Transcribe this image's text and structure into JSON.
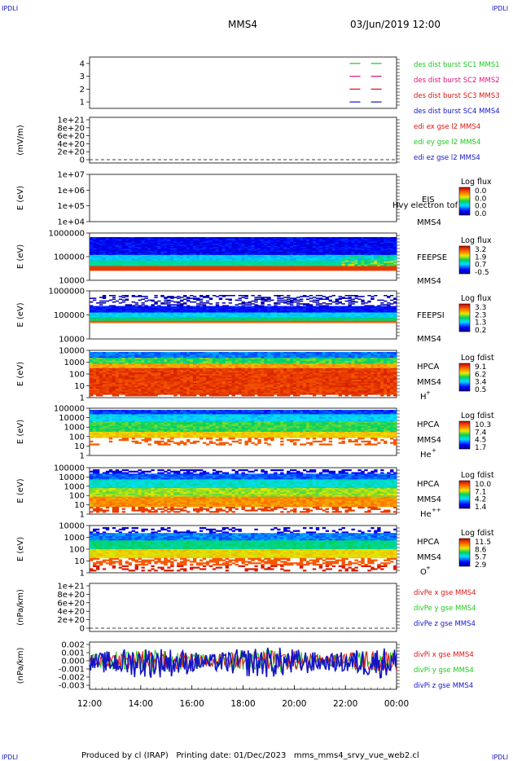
{
  "header": {
    "logo_left": "IPDLI",
    "logo_right": "IPDLI",
    "spacecraft": "MMS4",
    "datetime": "03/Jun/2019 12:00"
  },
  "footer": {
    "logo_left": "IPDLI",
    "logo_right": "IPDLI",
    "credit": "Produced by cl (IRAP)   Printing date: 01/Dec/2023   mms_mms4_srvy_vue_web2.cl"
  },
  "colors": {
    "sc1": "#1ec81e",
    "sc2": "#e0147a",
    "sc3": "#d91515",
    "sc4": "#1414c8",
    "x": "#d91515",
    "y": "#1ec81e",
    "z": "#1414c8"
  },
  "chart_data": [
    {
      "type": "line",
      "id": "burst",
      "ylim": [
        0.5,
        4.5
      ],
      "ticks": [
        "1",
        "2",
        "3",
        "4"
      ],
      "xlim": [
        "12:00",
        "00:00"
      ],
      "series": [
        {
          "name": "des dist burst SC1 MMS1",
          "y": 4,
          "segments": [
            [
              "22:10",
              "22:35"
            ],
            [
              "23:00",
              "23:25"
            ]
          ]
        },
        {
          "name": "des dist burst SC2 MMS2",
          "y": 3,
          "segments": [
            [
              "22:10",
              "22:35"
            ],
            [
              "23:00",
              "23:25"
            ]
          ]
        },
        {
          "name": "des dist burst SC3 MMS3",
          "y": 2,
          "segments": [
            [
              "22:10",
              "22:35"
            ],
            [
              "23:00",
              "23:25"
            ]
          ]
        },
        {
          "name": "des dist burst SC4 MMS4",
          "y": 1,
          "segments": [
            [
              "22:10",
              "22:35"
            ],
            [
              "23:00",
              "23:25"
            ]
          ]
        }
      ]
    },
    {
      "type": "line",
      "id": "edi",
      "ylabel": "(mV/m)",
      "ticks": [
        "0",
        "2e+20",
        "4e+20",
        "6e+20",
        "8e+20",
        "1e+21"
      ],
      "zero_dashed": true,
      "series": [
        {
          "name": "edi ex gse l2 MMS4"
        },
        {
          "name": "edi ey gse l2 MMS4"
        },
        {
          "name": "edi ez gse l2 MMS4"
        }
      ]
    },
    {
      "type": "heatmap",
      "id": "eis",
      "ylabel": "E (eV)",
      "ticks": [
        "1e+04",
        "1e+05",
        "1e+06",
        "1e+07"
      ],
      "instrument": "EIS",
      "product": "Hvy electron tof",
      "sc": "MMS4",
      "cbar_title": "Log flux",
      "cbar_ticks": [
        "0.0",
        "0.0",
        "0.0",
        "0.0"
      ]
    },
    {
      "type": "heatmap",
      "id": "feepse",
      "ylabel": "E (eV)",
      "ticks": [
        "10000",
        "100000",
        "1000000"
      ],
      "instrument": "FEEPSE",
      "sc": "MMS4",
      "cbar_title": "Log flux",
      "cbar_ticks": [
        "3.2",
        "1.9",
        "0.7",
        "-0.5"
      ]
    },
    {
      "type": "heatmap",
      "id": "feepsi",
      "ylabel": "E (eV)",
      "ticks": [
        "10000",
        "100000",
        "1000000"
      ],
      "instrument": "FEEPSI",
      "sc": "MMS4",
      "cbar_title": "Log flux",
      "cbar_ticks": [
        "3.3",
        "2.3",
        "1.3",
        "0.2"
      ]
    },
    {
      "type": "heatmap",
      "id": "hpca_h",
      "ylabel": "E (eV)",
      "ticks": [
        "1",
        "10",
        "100",
        "1000",
        "10000"
      ],
      "instrument": "HPCA",
      "sc": "MMS4",
      "species": "H",
      "species_sup": "+",
      "cbar_title": "Log fdist",
      "cbar_ticks": [
        "9.1",
        "6.2",
        "3.4",
        "0.5"
      ]
    },
    {
      "type": "heatmap",
      "id": "hpca_he1",
      "ylabel": "E (eV)",
      "ticks": [
        "1",
        "10",
        "100",
        "1000",
        "10000",
        "100000"
      ],
      "instrument": "HPCA",
      "sc": "MMS4",
      "species": "He",
      "species_sup": "+",
      "cbar_title": "Log fdist",
      "cbar_ticks": [
        "10.3",
        "7.4",
        "4.5",
        "1.7"
      ]
    },
    {
      "type": "heatmap",
      "id": "hpca_he2",
      "ylabel": "E (eV)",
      "ticks": [
        "1",
        "10",
        "100",
        "1000",
        "10000",
        "100000"
      ],
      "instrument": "HPCA",
      "sc": "MMS4",
      "species": "He",
      "species_sup": "++",
      "cbar_title": "Log fdist",
      "cbar_ticks": [
        "10.0",
        "7.1",
        "4.2",
        "1.4"
      ]
    },
    {
      "type": "heatmap",
      "id": "hpca_o",
      "ylabel": "E (eV)",
      "ticks": [
        "1",
        "10",
        "100",
        "1000",
        "10000"
      ],
      "instrument": "HPCA",
      "sc": "MMS4",
      "species": "O",
      "species_sup": "+",
      "cbar_title": "Log fdist",
      "cbar_ticks": [
        "11.5",
        "8.6",
        "5.7",
        "2.9"
      ]
    },
    {
      "type": "line",
      "id": "divpe",
      "ylabel": "(nPa/km)",
      "ticks": [
        "0",
        "2e+20",
        "4e+20",
        "6e+20",
        "8e+20",
        "1e+21"
      ],
      "zero_dashed": true,
      "series": [
        {
          "name": "divPe x gse MMS4"
        },
        {
          "name": "divPe y gse MMS4"
        },
        {
          "name": "divPe z gse MMS4"
        }
      ]
    },
    {
      "type": "line",
      "id": "divpi",
      "ylabel": "(nPa/km)",
      "ticks": [
        "-0.003",
        "-0.002",
        "-0.001",
        "0.000",
        "0.001",
        "0.002"
      ],
      "ylim": [
        -0.0035,
        0.0023
      ],
      "series": [
        {
          "name": "divPi x gse MMS4"
        },
        {
          "name": "divPi y gse MMS4"
        },
        {
          "name": "divPi z gse MMS4"
        }
      ]
    }
  ],
  "x_axis": {
    "ticks": [
      "12:00",
      "14:00",
      "16:00",
      "18:00",
      "20:00",
      "22:00",
      "00:00"
    ]
  }
}
